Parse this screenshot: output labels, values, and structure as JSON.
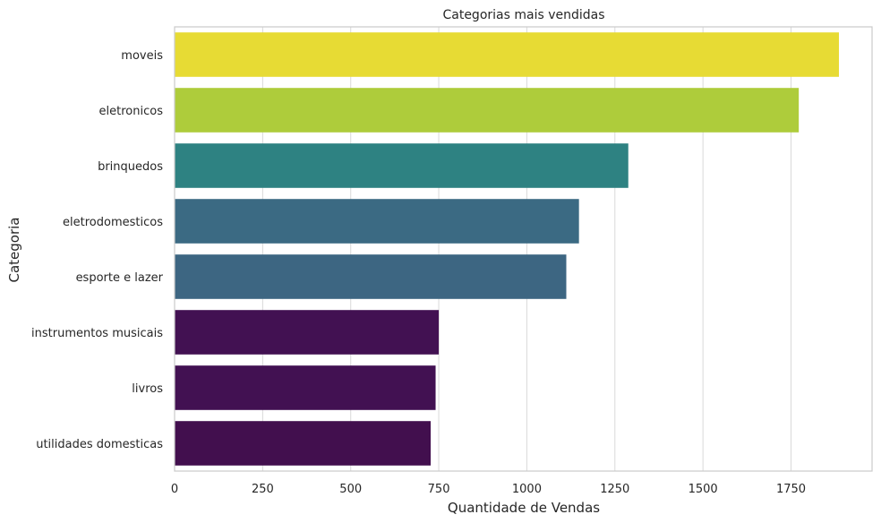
{
  "chart_data": {
    "type": "bar",
    "orientation": "horizontal",
    "title": "Categorias mais vendidas",
    "xlabel": "Quantidade de Vendas",
    "ylabel": "Categoria",
    "xlim": [
      0,
      1980
    ],
    "xticks": [
      0,
      250,
      500,
      750,
      1000,
      1250,
      1500,
      1750
    ],
    "grid": true,
    "categories": [
      "moveis",
      "eletronicos",
      "brinquedos",
      "eletrodomesticos",
      "esporte e lazer",
      "instrumentos musicais",
      "livros",
      "utilidades domesticas"
    ],
    "values": [
      1886,
      1772,
      1288,
      1148,
      1112,
      750,
      741,
      727
    ],
    "colors": [
      "#e7db34",
      "#aecc3b",
      "#2e8282",
      "#3b6a83",
      "#3d6682",
      "#421152",
      "#421152",
      "#420f4e"
    ]
  }
}
